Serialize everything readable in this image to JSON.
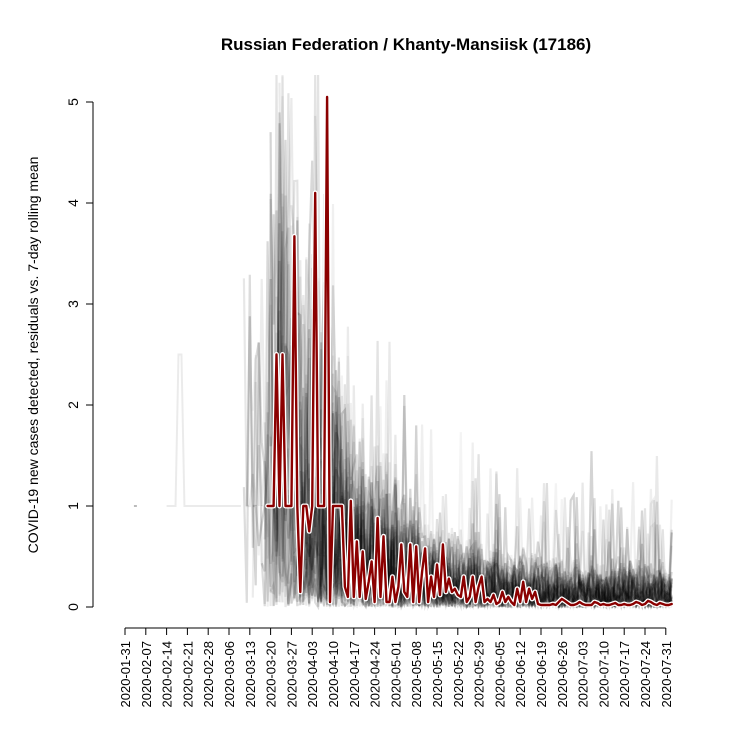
{
  "chart_data": {
    "type": "line",
    "title": "Russian Federation / Khanty-Mansiisk (17186)",
    "ylabel": "COVID-19 new cases detected, residuals vs. 7-day rolling mean",
    "xlabel": "",
    "ylim": [
      0,
      5
    ],
    "yticks": [
      "0",
      "1",
      "2",
      "3",
      "4",
      "5"
    ],
    "xlim": [
      "2020-01-31",
      "2020-08-02"
    ],
    "xticks": [
      "2020-01-31",
      "2020-02-07",
      "2020-02-14",
      "2020-02-21",
      "2020-02-28",
      "2020-03-06",
      "2020-03-13",
      "2020-03-20",
      "2020-03-27",
      "2020-04-03",
      "2020-04-10",
      "2020-04-17",
      "2020-04-24",
      "2020-05-01",
      "2020-05-08",
      "2020-05-15",
      "2020-05-22",
      "2020-05-29",
      "2020-06-05",
      "2020-06-12",
      "2020-06-19",
      "2020-06-26",
      "2020-07-03",
      "2020-07-10",
      "2020-07-17",
      "2020-07-24",
      "2020-07-31"
    ],
    "grid": false,
    "background_series_color": "#000000",
    "highlight_color": "#8b0000",
    "highlight_series": {
      "points": [
        [
          "2020-03-19",
          1.0
        ],
        [
          "2020-03-21",
          1.0
        ],
        [
          "2020-03-22",
          2.5
        ],
        [
          "2020-03-23",
          1.0
        ],
        [
          "2020-03-24",
          2.5
        ],
        [
          "2020-03-25",
          1.0
        ],
        [
          "2020-03-27",
          1.0
        ],
        [
          "2020-03-28",
          3.67
        ],
        [
          "2020-03-29",
          1.0
        ],
        [
          "2020-03-30",
          0.15
        ],
        [
          "2020-03-31",
          1.0
        ],
        [
          "2020-04-01",
          1.0
        ],
        [
          "2020-04-02",
          0.75
        ],
        [
          "2020-04-03",
          1.0
        ],
        [
          "2020-04-04",
          4.1
        ],
        [
          "2020-04-05",
          1.0
        ],
        [
          "2020-04-06",
          1.0
        ],
        [
          "2020-04-07",
          1.0
        ],
        [
          "2020-04-08",
          5.05
        ],
        [
          "2020-04-09",
          0.05
        ],
        [
          "2020-04-10",
          1.0
        ],
        [
          "2020-04-11",
          1.0
        ],
        [
          "2020-04-12",
          1.0
        ],
        [
          "2020-04-13",
          1.0
        ],
        [
          "2020-04-14",
          0.2
        ],
        [
          "2020-04-15",
          0.1
        ],
        [
          "2020-04-16",
          1.05
        ],
        [
          "2020-04-17",
          0.1
        ],
        [
          "2020-04-18",
          0.65
        ],
        [
          "2020-04-19",
          0.1
        ],
        [
          "2020-04-20",
          0.55
        ],
        [
          "2020-04-21",
          0.08
        ],
        [
          "2020-04-22",
          0.25
        ],
        [
          "2020-04-23",
          0.45
        ],
        [
          "2020-04-24",
          0.05
        ],
        [
          "2020-04-25",
          0.88
        ],
        [
          "2020-04-26",
          0.1
        ],
        [
          "2020-04-27",
          0.7
        ],
        [
          "2020-04-28",
          0.05
        ],
        [
          "2020-04-29",
          0.05
        ],
        [
          "2020-04-30",
          0.3
        ],
        [
          "2020-05-01",
          0.05
        ],
        [
          "2020-05-02",
          0.2
        ],
        [
          "2020-05-03",
          0.62
        ],
        [
          "2020-05-04",
          0.15
        ],
        [
          "2020-05-05",
          0.1
        ],
        [
          "2020-05-06",
          0.62
        ],
        [
          "2020-05-07",
          0.05
        ],
        [
          "2020-05-08",
          0.6
        ],
        [
          "2020-05-09",
          0.05
        ],
        [
          "2020-05-10",
          0.35
        ],
        [
          "2020-05-11",
          0.58
        ],
        [
          "2020-05-12",
          0.05
        ],
        [
          "2020-05-13",
          0.3
        ],
        [
          "2020-05-14",
          0.1
        ],
        [
          "2020-05-15",
          0.42
        ],
        [
          "2020-05-16",
          0.12
        ],
        [
          "2020-05-17",
          0.62
        ],
        [
          "2020-05-18",
          0.15
        ],
        [
          "2020-05-19",
          0.28
        ],
        [
          "2020-05-20",
          0.15
        ],
        [
          "2020-05-21",
          0.18
        ],
        [
          "2020-05-22",
          0.12
        ],
        [
          "2020-05-23",
          0.1
        ],
        [
          "2020-05-24",
          0.3
        ],
        [
          "2020-05-25",
          0.05
        ],
        [
          "2020-05-26",
          0.1
        ],
        [
          "2020-05-27",
          0.3
        ],
        [
          "2020-05-28",
          0.05
        ],
        [
          "2020-05-29",
          0.2
        ],
        [
          "2020-05-30",
          0.3
        ],
        [
          "2020-05-31",
          0.05
        ],
        [
          "2020-06-01",
          0.08
        ],
        [
          "2020-06-02",
          0.05
        ],
        [
          "2020-06-03",
          0.12
        ],
        [
          "2020-06-04",
          0.03
        ],
        [
          "2020-06-05",
          0.05
        ],
        [
          "2020-06-06",
          0.15
        ],
        [
          "2020-06-07",
          0.05
        ],
        [
          "2020-06-08",
          0.1
        ],
        [
          "2020-06-09",
          0.05
        ],
        [
          "2020-06-10",
          0.02
        ],
        [
          "2020-06-11",
          0.18
        ],
        [
          "2020-06-12",
          0.05
        ],
        [
          "2020-06-13",
          0.25
        ],
        [
          "2020-06-14",
          0.05
        ],
        [
          "2020-06-15",
          0.18
        ],
        [
          "2020-06-16",
          0.08
        ],
        [
          "2020-06-17",
          0.15
        ],
        [
          "2020-06-18",
          0.03
        ],
        [
          "2020-06-19",
          0.02
        ],
        [
          "2020-06-20",
          0.02
        ],
        [
          "2020-06-21",
          0.02
        ],
        [
          "2020-06-22",
          0.02
        ],
        [
          "2020-06-23",
          0.03
        ],
        [
          "2020-06-24",
          0.02
        ],
        [
          "2020-06-25",
          0.05
        ],
        [
          "2020-06-26",
          0.08
        ],
        [
          "2020-06-27",
          0.06
        ],
        [
          "2020-06-28",
          0.04
        ],
        [
          "2020-06-29",
          0.02
        ],
        [
          "2020-06-30",
          0.02
        ],
        [
          "2020-07-01",
          0.03
        ],
        [
          "2020-07-02",
          0.05
        ],
        [
          "2020-07-03",
          0.03
        ],
        [
          "2020-07-04",
          0.02
        ],
        [
          "2020-07-05",
          0.02
        ],
        [
          "2020-07-06",
          0.02
        ],
        [
          "2020-07-07",
          0.05
        ],
        [
          "2020-07-08",
          0.04
        ],
        [
          "2020-07-09",
          0.02
        ],
        [
          "2020-07-10",
          0.03
        ],
        [
          "2020-07-11",
          0.02
        ],
        [
          "2020-07-12",
          0.02
        ],
        [
          "2020-07-13",
          0.03
        ],
        [
          "2020-07-14",
          0.04
        ],
        [
          "2020-07-15",
          0.02
        ],
        [
          "2020-07-16",
          0.02
        ],
        [
          "2020-07-17",
          0.03
        ],
        [
          "2020-07-18",
          0.02
        ],
        [
          "2020-07-19",
          0.02
        ],
        [
          "2020-07-20",
          0.03
        ],
        [
          "2020-07-21",
          0.05
        ],
        [
          "2020-07-22",
          0.04
        ],
        [
          "2020-07-23",
          0.02
        ],
        [
          "2020-07-24",
          0.03
        ],
        [
          "2020-07-25",
          0.06
        ],
        [
          "2020-07-26",
          0.05
        ],
        [
          "2020-07-27",
          0.03
        ],
        [
          "2020-07-28",
          0.02
        ],
        [
          "2020-07-29",
          0.04
        ],
        [
          "2020-07-30",
          0.03
        ],
        [
          "2020-07-31",
          0.02
        ],
        [
          "2020-08-01",
          0.02
        ],
        [
          "2020-08-02",
          0.03
        ]
      ]
    }
  }
}
